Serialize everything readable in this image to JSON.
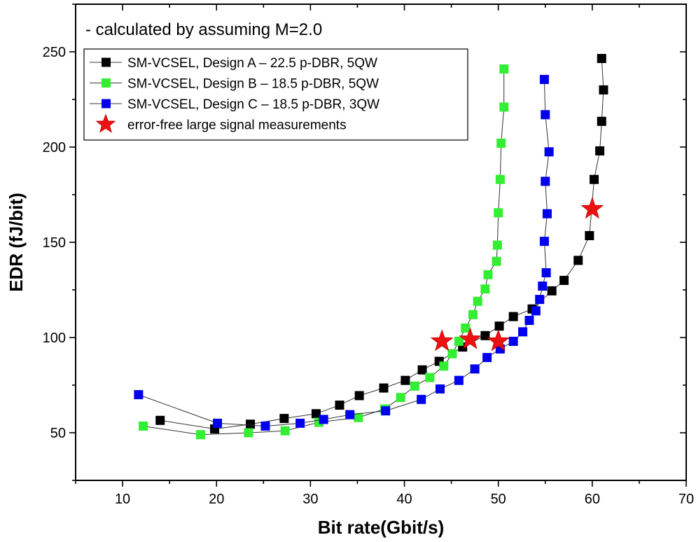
{
  "chart_data": {
    "type": "scatter",
    "title": "",
    "annotation": "- calculated by assuming M=2.0",
    "xlabel": "Bit rate(Gbit/s)",
    "ylabel": "EDR (fJ/bit)",
    "xlim": [
      5,
      70
    ],
    "ylim": [
      25,
      275
    ],
    "xticks": [
      10,
      20,
      30,
      40,
      50,
      60,
      70
    ],
    "yticks": [
      50,
      100,
      150,
      200,
      250
    ],
    "legend_position": "top-left",
    "series": [
      {
        "name": "SM-VCSEL, Design A – 22.5 p-DBR, 5QW",
        "color": "#000000",
        "marker": "square",
        "points": [
          [
            14.0,
            56.5
          ],
          [
            19.8,
            52
          ],
          [
            23.6,
            54.5
          ],
          [
            27.2,
            57.5
          ],
          [
            30.6,
            60
          ],
          [
            33.1,
            64.5
          ],
          [
            35.2,
            69.5
          ],
          [
            37.8,
            73.5
          ],
          [
            40.1,
            77.5
          ],
          [
            41.9,
            83
          ],
          [
            43.7,
            87.5
          ],
          [
            46.2,
            95
          ],
          [
            48.6,
            101
          ],
          [
            50.1,
            106
          ],
          [
            51.6,
            111
          ],
          [
            53.6,
            115
          ],
          [
            55.7,
            124.5
          ],
          [
            57.0,
            130
          ],
          [
            58.5,
            140.5
          ],
          [
            59.7,
            153.5
          ],
          [
            60.2,
            183
          ],
          [
            60.8,
            198
          ],
          [
            61.0,
            213.5
          ],
          [
            61.2,
            230
          ],
          [
            61.0,
            246.5
          ]
        ]
      },
      {
        "name": "SM-VCSEL, Design B – 18.5 p-DBR, 5QW",
        "color": "#33ee33",
        "marker": "square",
        "points": [
          [
            12.2,
            53.5
          ],
          [
            18.3,
            49
          ],
          [
            23.4,
            50
          ],
          [
            27.3,
            51
          ],
          [
            30.9,
            55.5
          ],
          [
            35.1,
            58
          ],
          [
            37.9,
            62.5
          ],
          [
            39.6,
            68.5
          ],
          [
            41.1,
            74.5
          ],
          [
            42.7,
            79
          ],
          [
            44.2,
            85
          ],
          [
            45.1,
            91.5
          ],
          [
            45.8,
            98
          ],
          [
            46.5,
            105
          ],
          [
            47.3,
            112
          ],
          [
            47.8,
            119
          ],
          [
            48.6,
            125.5
          ],
          [
            48.9,
            133
          ],
          [
            49.8,
            140
          ],
          [
            49.9,
            148.5
          ],
          [
            50.0,
            165.5
          ],
          [
            50.2,
            183
          ],
          [
            50.3,
            202
          ],
          [
            50.6,
            221
          ],
          [
            50.6,
            241
          ]
        ]
      },
      {
        "name": "SM-VCSEL, Design C – 18.5 p-DBR, 3QW",
        "color": "#0000ee",
        "marker": "square",
        "points": [
          [
            11.7,
            70
          ],
          [
            20.1,
            55
          ],
          [
            25.2,
            53.5
          ],
          [
            28.9,
            55
          ],
          [
            31.4,
            57
          ],
          [
            34.2,
            59.5
          ],
          [
            38.0,
            61.5
          ],
          [
            41.8,
            67.5
          ],
          [
            43.8,
            73
          ],
          [
            45.8,
            77.5
          ],
          [
            47.5,
            83.5
          ],
          [
            48.8,
            89.5
          ],
          [
            50.2,
            94
          ],
          [
            51.6,
            98
          ],
          [
            52.6,
            103
          ],
          [
            53.3,
            109
          ],
          [
            54.0,
            114
          ],
          [
            54.4,
            120
          ],
          [
            54.7,
            127
          ],
          [
            55.1,
            134
          ],
          [
            54.9,
            150.5
          ],
          [
            55.2,
            165
          ],
          [
            55.0,
            182
          ],
          [
            55.4,
            197.5
          ],
          [
            55.0,
            217
          ],
          [
            54.9,
            235.5
          ]
        ]
      },
      {
        "name": "error-free large signal measurements",
        "color": "#ee1111",
        "marker": "star",
        "connected": false,
        "points": [
          [
            44,
            98
          ],
          [
            47,
            99
          ],
          [
            50,
            98
          ],
          [
            60,
            167.5
          ]
        ]
      }
    ]
  }
}
